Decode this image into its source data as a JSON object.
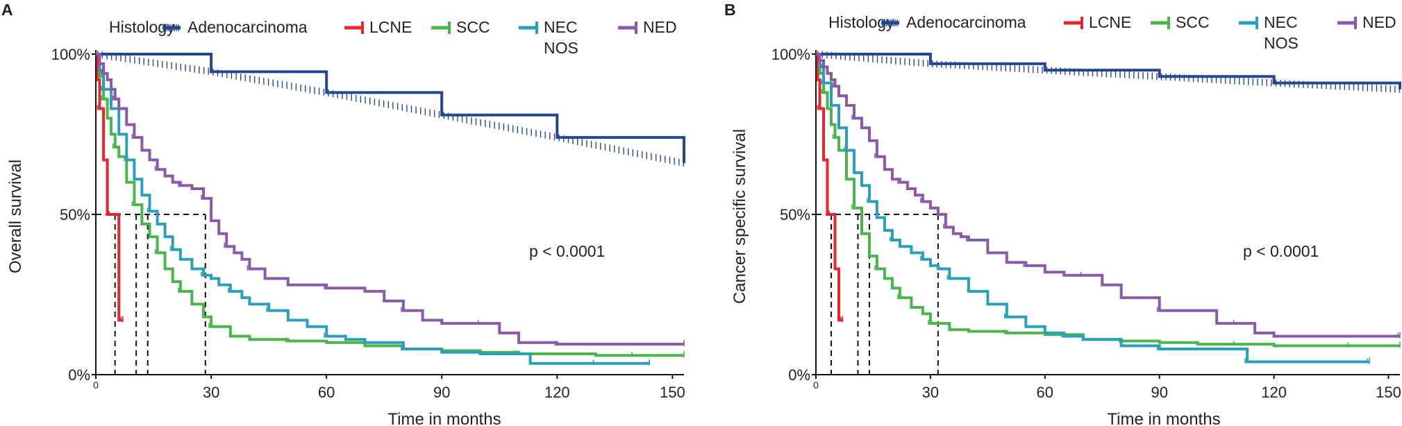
{
  "chart_data": [
    {
      "type": "line",
      "panel_label": "A",
      "title": "",
      "xlabel": "Time in months",
      "ylabel": "Overall survival",
      "xlim": [
        0,
        153
      ],
      "ylim": [
        0,
        100
      ],
      "xticks": [
        0,
        30,
        60,
        90,
        120,
        150
      ],
      "yticks": [
        "0%",
        "50%",
        "100%"
      ],
      "grid": false,
      "legend": {
        "title": "Histology",
        "placement": "top",
        "entries": [
          {
            "label": "Adenocarcinoma",
            "lines": [
              "Adenocarcinoma"
            ]
          },
          {
            "label": "LCNE",
            "lines": [
              "LCNE"
            ]
          },
          {
            "label": "SCC",
            "lines": [
              "SCC"
            ]
          },
          {
            "label": "NEC NOS",
            "lines": [
              "NEC",
              "NOS"
            ]
          },
          {
            "label": "NED",
            "lines": [
              "NED"
            ]
          }
        ]
      },
      "annotation": "p < 0.0001",
      "median_survival": [
        5,
        10.5,
        13.5,
        28.5
      ],
      "series": [
        {
          "name": "Adenocarcinoma",
          "color": "#24478f",
          "censor_ticks": "dense",
          "x": [
            0,
            30,
            60,
            90,
            120,
            153
          ],
          "y": [
            100,
            94.5,
            88,
            81,
            74,
            66
          ]
        },
        {
          "name": "LCNE",
          "color": "#e8262c",
          "x": [
            0,
            0.5,
            1,
            2,
            3,
            4,
            5,
            6,
            7
          ],
          "y": [
            100,
            92,
            83,
            67,
            50,
            50,
            50,
            17,
            17
          ]
        },
        {
          "name": "SCC",
          "color": "#4ab54a",
          "x": [
            0,
            1,
            2,
            3,
            4,
            5,
            6,
            8,
            10,
            12,
            14,
            16,
            18,
            20,
            22,
            25,
            28,
            30,
            35,
            40,
            50,
            60,
            70,
            80,
            90,
            100,
            110,
            120,
            130,
            140,
            153
          ],
          "y": [
            100,
            93,
            86,
            80,
            75,
            71,
            68,
            60,
            53,
            47,
            43,
            38,
            33,
            29,
            26,
            22,
            18,
            15,
            12,
            11,
            10.5,
            10,
            9,
            8,
            7.5,
            7,
            6.5,
            6.5,
            6,
            6,
            6
          ]
        },
        {
          "name": "NEC NOS",
          "color": "#2a9fbc",
          "x": [
            0,
            1,
            2,
            4,
            6,
            8,
            10,
            12,
            14,
            16,
            18,
            20,
            22,
            25,
            28,
            30,
            32,
            35,
            38,
            40,
            45,
            50,
            55,
            60,
            65,
            70,
            80,
            90,
            100,
            110,
            113,
            120,
            130,
            144
          ],
          "y": [
            100,
            95,
            89,
            83,
            75,
            67,
            61,
            56,
            51,
            47,
            43,
            39,
            36,
            33,
            31,
            30,
            28,
            26,
            24,
            22,
            20,
            17,
            15,
            12,
            11,
            10,
            8,
            7,
            6.5,
            6.5,
            3.5,
            3.5,
            3.5,
            3.5
          ]
        },
        {
          "name": "NED",
          "color": "#8a5aa8",
          "x": [
            0,
            1,
            2,
            3,
            4,
            5,
            6,
            8,
            10,
            12,
            14,
            16,
            18,
            20,
            22,
            25,
            27,
            28,
            30,
            32,
            34,
            36,
            38,
            40,
            44,
            50,
            60,
            70,
            75,
            80,
            85,
            90,
            100,
            105,
            110,
            120,
            153
          ],
          "y": [
            100,
            97,
            94,
            92,
            89,
            86,
            83,
            78,
            74,
            70,
            67,
            64,
            62,
            60,
            59,
            58,
            58,
            55,
            48,
            44,
            40,
            38,
            36,
            33,
            30,
            28,
            27,
            26,
            23,
            20,
            17,
            16,
            16,
            13,
            10,
            9.5,
            9.5
          ]
        }
      ]
    },
    {
      "type": "line",
      "panel_label": "B",
      "title": "",
      "xlabel": "Time in months",
      "ylabel": "Cancer specific survival",
      "xlim": [
        0,
        153
      ],
      "ylim": [
        0,
        100
      ],
      "xticks": [
        0,
        30,
        60,
        90,
        120,
        150
      ],
      "yticks": [
        "0%",
        "50%",
        "100%"
      ],
      "grid": false,
      "legend": {
        "title": "Histology",
        "placement": "top",
        "entries": [
          {
            "label": "Adenocarcinoma",
            "lines": [
              "Adenocarcinoma"
            ]
          },
          {
            "label": "LCNE",
            "lines": [
              "LCNE"
            ]
          },
          {
            "label": "SCC",
            "lines": [
              "SCC"
            ]
          },
          {
            "label": "NEC NOS",
            "lines": [
              "NEC",
              "NOS"
            ]
          },
          {
            "label": "NED",
            "lines": [
              "NED"
            ]
          }
        ]
      },
      "annotation": "p < 0.0001",
      "median_survival": [
        4,
        11,
        14,
        32
      ],
      "series": [
        {
          "name": "Adenocarcinoma",
          "color": "#24478f",
          "censor_ticks": "dense",
          "x": [
            0,
            30,
            60,
            90,
            120,
            153
          ],
          "y": [
            100,
            97,
            95,
            93,
            91,
            89
          ]
        },
        {
          "name": "LCNE",
          "color": "#e8262c",
          "x": [
            0,
            0.5,
            1,
            2,
            3,
            4,
            5,
            6,
            7
          ],
          "y": [
            100,
            92,
            83,
            67,
            50,
            50,
            33,
            17,
            17
          ]
        },
        {
          "name": "SCC",
          "color": "#4ab54a",
          "x": [
            0,
            1,
            2,
            3,
            4,
            5,
            6,
            8,
            10,
            12,
            14,
            16,
            18,
            20,
            22,
            25,
            28,
            30,
            35,
            40,
            50,
            60,
            70,
            80,
            90,
            100,
            110,
            120,
            130,
            140,
            153
          ],
          "y": [
            100,
            94,
            88,
            83,
            78,
            74,
            70,
            61,
            52,
            44,
            37,
            33,
            30,
            27,
            24,
            21,
            19,
            16,
            14,
            13.5,
            13,
            12.5,
            11,
            10.5,
            10,
            9.5,
            9.5,
            9,
            9,
            9,
            9
          ]
        },
        {
          "name": "NEC NOS",
          "color": "#2a9fbc",
          "x": [
            0,
            1,
            2,
            4,
            6,
            8,
            10,
            12,
            14,
            16,
            18,
            20,
            22,
            25,
            28,
            30,
            32,
            35,
            40,
            45,
            50,
            55,
            60,
            65,
            70,
            80,
            90,
            100,
            110,
            113,
            120,
            130,
            145
          ],
          "y": [
            100,
            96,
            91,
            84,
            77,
            70,
            63,
            59,
            54,
            49,
            45,
            42,
            40,
            38,
            36,
            34,
            33,
            30,
            26,
            22,
            18,
            15,
            13,
            12,
            11,
            9,
            8,
            8,
            8,
            4,
            4,
            4,
            4
          ]
        },
        {
          "name": "NED",
          "color": "#8a5aa8",
          "x": [
            0,
            1,
            2,
            3,
            4,
            5,
            6,
            8,
            10,
            12,
            14,
            16,
            18,
            20,
            22,
            24,
            26,
            28,
            30,
            32,
            34,
            36,
            38,
            40,
            45,
            50,
            55,
            60,
            65,
            70,
            75,
            80,
            90,
            100,
            105,
            110,
            115,
            120,
            153
          ],
          "y": [
            100,
            98,
            96,
            94,
            92,
            90,
            87,
            84,
            80,
            77,
            73,
            68,
            64,
            61,
            60,
            58,
            56,
            54,
            52,
            50,
            46,
            44,
            43,
            42,
            38,
            35,
            34,
            32,
            31,
            31,
            28,
            24,
            20,
            20,
            16,
            16,
            13,
            12,
            12
          ]
        }
      ]
    }
  ]
}
